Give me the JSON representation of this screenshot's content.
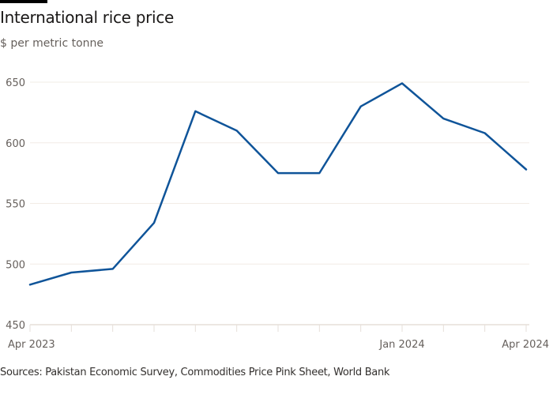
{
  "header": {
    "title": "International rice price",
    "subtitle": "$ per metric tonne"
  },
  "footer": {
    "source": "Sources: Pakistan Economic Survey, Commodities Price Pink Sheet, World Bank"
  },
  "chart_data": {
    "type": "line",
    "title": "International rice price",
    "ylabel": "$ per metric tonne",
    "xlabel": "",
    "x": [
      "Apr 2023",
      "May 2023",
      "Jun 2023",
      "Jul 2023",
      "Aug 2023",
      "Sep 2023",
      "Oct 2023",
      "Nov 2023",
      "Dec 2023",
      "Jan 2024",
      "Feb 2024",
      "Mar 2024",
      "Apr 2024"
    ],
    "series": [
      {
        "values": [
          483,
          493,
          496,
          534,
          626,
          610,
          575,
          575,
          630,
          649,
          620,
          608,
          578
        ],
        "color": "#0f5499"
      }
    ],
    "ylim": [
      450,
      650
    ],
    "yticks": [
      "450",
      "500",
      "550",
      "600",
      "650"
    ],
    "xtick_labels": [
      {
        "index": 0,
        "label": "Apr 2023"
      },
      {
        "index": 9,
        "label": "Jan 2024"
      },
      {
        "index": 12,
        "label": "Apr 2024"
      }
    ],
    "grid": true,
    "gridline_color": "#f2ece6",
    "axis_color": "#e6dfd9"
  }
}
